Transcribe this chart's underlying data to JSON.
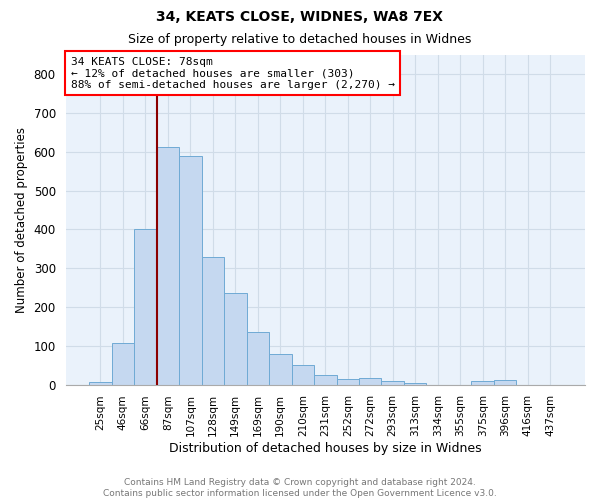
{
  "title1": "34, KEATS CLOSE, WIDNES, WA8 7EX",
  "title2": "Size of property relative to detached houses in Widnes",
  "xlabel": "Distribution of detached houses by size in Widnes",
  "ylabel": "Number of detached properties",
  "bar_labels": [
    "25sqm",
    "46sqm",
    "66sqm",
    "87sqm",
    "107sqm",
    "128sqm",
    "149sqm",
    "169sqm",
    "190sqm",
    "210sqm",
    "231sqm",
    "252sqm",
    "272sqm",
    "293sqm",
    "313sqm",
    "334sqm",
    "355sqm",
    "375sqm",
    "396sqm",
    "416sqm",
    "437sqm"
  ],
  "bar_values": [
    7,
    106,
    400,
    614,
    590,
    330,
    237,
    135,
    79,
    50,
    24,
    15,
    17,
    9,
    5,
    0,
    0,
    9,
    11,
    0,
    0
  ],
  "bar_color": "#c5d8f0",
  "bar_edge_color": "#6faad4",
  "annotation_box_text": "34 KEATS CLOSE: 78sqm\n← 12% of detached houses are smaller (303)\n88% of semi-detached houses are larger (2,270) →",
  "annotation_box_color": "white",
  "annotation_box_edge_color": "red",
  "vline_color": "#8b0000",
  "ylim": [
    0,
    850
  ],
  "yticks": [
    0,
    100,
    200,
    300,
    400,
    500,
    600,
    700,
    800
  ],
  "footnote": "Contains HM Land Registry data © Crown copyright and database right 2024.\nContains public sector information licensed under the Open Government Licence v3.0.",
  "footnote_color": "#777777",
  "grid_color": "#d0dce8",
  "background_color": "#eaf2fb"
}
